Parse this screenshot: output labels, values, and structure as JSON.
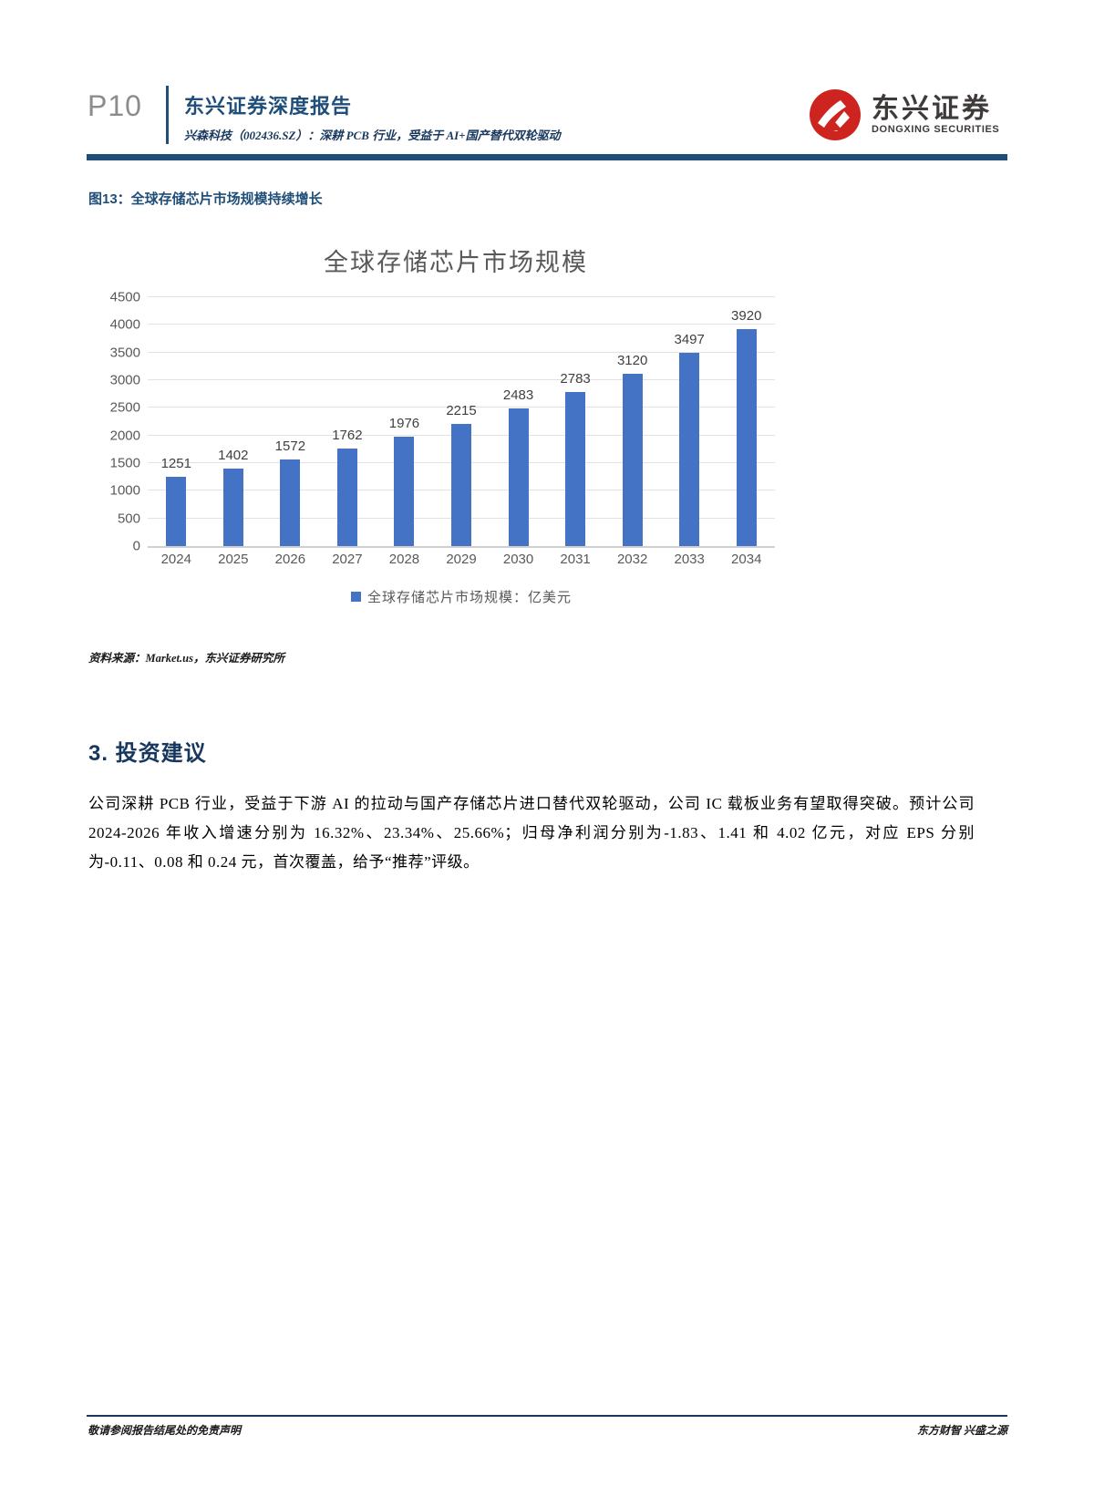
{
  "header": {
    "page_number": "P10",
    "report_type": "东兴证券深度报告",
    "subtitle": "兴森科技（002436.SZ）：深耕 PCB 行业，受益于 AI+国产替代双轮驱动",
    "logo_cn": "东兴证券",
    "logo_en": "DONGXING SECURITIES"
  },
  "figure": {
    "caption": "图13：全球存储芯片市场规模持续增长",
    "source": "资料来源：Market.us，东兴证券研究所"
  },
  "chart_data": {
    "type": "bar",
    "title": "全球存储芯片市场规模",
    "categories": [
      "2024",
      "2025",
      "2026",
      "2027",
      "2028",
      "2029",
      "2030",
      "2031",
      "2032",
      "2033",
      "2034"
    ],
    "values": [
      1251,
      1402,
      1572,
      1762,
      1976,
      2215,
      2483,
      2783,
      3120,
      3497,
      3920
    ],
    "legend": "全球存储芯片市场规模：亿美元",
    "xlabel": "",
    "ylabel": "",
    "ylim": [
      0,
      4500
    ],
    "ytick_step": 500,
    "bar_color": "#4472c4",
    "grid": true,
    "legend_position": "bottom"
  },
  "section": {
    "heading": "3. 投资建议",
    "paragraph": "公司深耕 PCB 行业，受益于下游 AI 的拉动与国产存储芯片进口替代双轮驱动，公司 IC 载板业务有望取得突破。预计公司 2024-2026 年收入增速分别为 16.32%、23.34%、25.66%；归母净利润分别为-1.83、1.41 和 4.02 亿元，对应 EPS 分别为-0.11、0.08 和 0.24 元，首次覆盖，给予“推荐”评级。"
  },
  "footer": {
    "left": "敬请参阅报告结尾处的免责声明",
    "right": "东方财智 兴盛之源"
  },
  "colors": {
    "brand_blue": "#1f4e79",
    "brand_navy": "#17375e",
    "bar_blue": "#4472c4",
    "logo_red": "#ce2420",
    "text_gray": "#595959"
  }
}
